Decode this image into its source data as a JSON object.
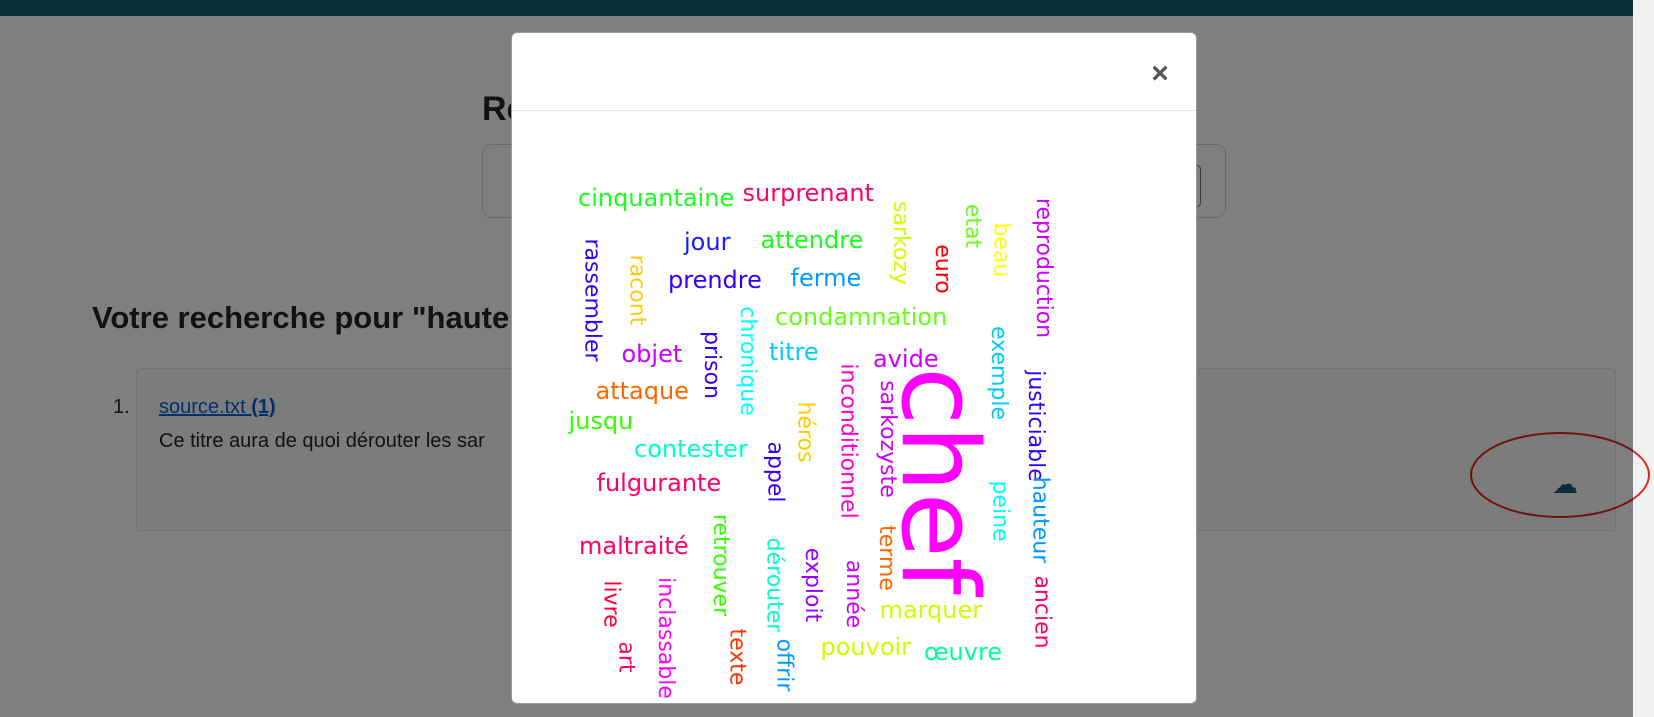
{
  "page": {
    "title": "Re",
    "results_heading": "Votre recherche pour \"haute",
    "result": {
      "number": "1.",
      "file": "source.txt",
      "count": "(1)",
      "snippet": "Ce titre aura de quoi dérouter les sar"
    },
    "download_icon": "cloud-download-icon"
  },
  "modal": {
    "close_label": "×",
    "words": [
      {
        "text": "cinquantaine",
        "color": "#1aff1a"
      },
      {
        "text": "surprenant",
        "color": "#ff0066"
      },
      {
        "text": "jour",
        "color": "#1a1aff"
      },
      {
        "text": "attendre",
        "color": "#1aff1a"
      },
      {
        "text": "prendre",
        "color": "#3300ff"
      },
      {
        "text": "ferme",
        "color": "#0099ff"
      },
      {
        "text": "condamnation",
        "color": "#66ff1a"
      },
      {
        "text": "objet",
        "color": "#cc00ff"
      },
      {
        "text": "titre",
        "color": "#00ccff"
      },
      {
        "text": "avide",
        "color": "#cc00ff"
      },
      {
        "text": "attaque",
        "color": "#ff6600"
      },
      {
        "text": "jusqu",
        "color": "#33ff00"
      },
      {
        "text": "contester",
        "color": "#00ffcc"
      },
      {
        "text": "fulgurante",
        "color": "#ff0066"
      },
      {
        "text": "maltraité",
        "color": "#ff0066"
      },
      {
        "text": "marquer",
        "color": "#ccff00"
      },
      {
        "text": "pouvoir",
        "color": "#ccff00"
      },
      {
        "text": "œuvre",
        "color": "#00ff99"
      },
      {
        "text": "chef",
        "color": "#ff00ff"
      },
      {
        "text": "rassembler",
        "color": "#3300ff"
      },
      {
        "text": "racont",
        "color": "#ffcc00"
      },
      {
        "text": "prison",
        "color": "#3300ff"
      },
      {
        "text": "chronique",
        "color": "#00ffff"
      },
      {
        "text": "inconditionnel",
        "color": "#ff00cc"
      },
      {
        "text": "sarkozyste",
        "color": "#cc00ff"
      },
      {
        "text": "héros",
        "color": "#ffcc00"
      },
      {
        "text": "appel",
        "color": "#3300ff"
      },
      {
        "text": "sarkozy",
        "color": "#ccff00"
      },
      {
        "text": "etat",
        "color": "#66ff1a"
      },
      {
        "text": "beau",
        "color": "#ffff00"
      },
      {
        "text": "euro",
        "color": "#ff0000"
      },
      {
        "text": "exemple",
        "color": "#00ccff"
      },
      {
        "text": "reproduction",
        "color": "#cc00ff"
      },
      {
        "text": "justiciable",
        "color": "#3300ff"
      },
      {
        "text": "hauteur",
        "color": "#0099ff"
      },
      {
        "text": "peine",
        "color": "#00ffff"
      },
      {
        "text": "ancien",
        "color": "#ff0066"
      },
      {
        "text": "terme",
        "color": "#ff6600"
      },
      {
        "text": "année",
        "color": "#cc00ff"
      },
      {
        "text": "exploit",
        "color": "#9900ff"
      },
      {
        "text": "dérouter",
        "color": "#00ffcc"
      },
      {
        "text": "retrouver",
        "color": "#33ff00"
      },
      {
        "text": "offrir",
        "color": "#0099ff"
      },
      {
        "text": "texte",
        "color": "#ff3300"
      },
      {
        "text": "inclassable",
        "color": "#ff00ff"
      },
      {
        "text": "livre",
        "color": "#ff0033"
      },
      {
        "text": "art",
        "color": "#ff0066"
      }
    ]
  }
}
